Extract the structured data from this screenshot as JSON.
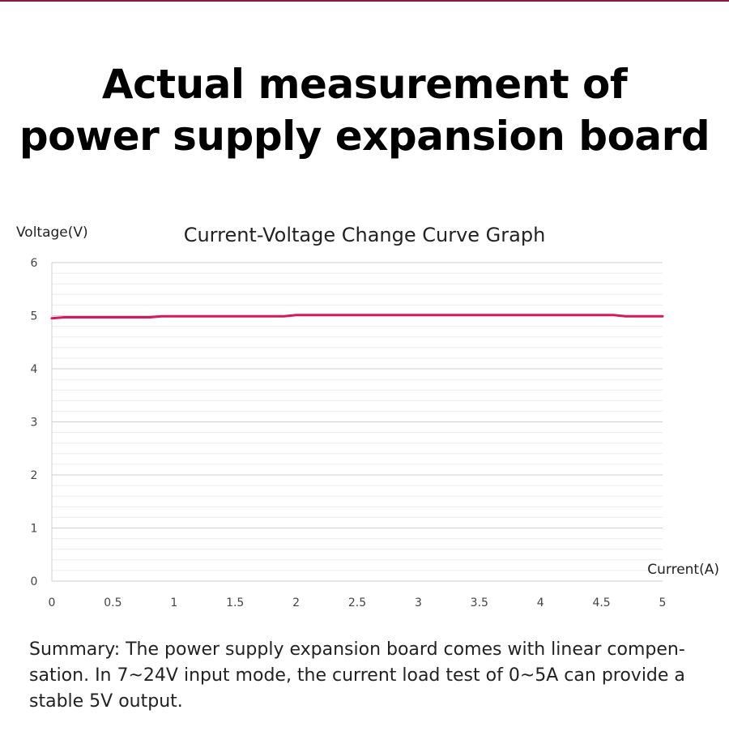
{
  "colors": {
    "accent": "#d6185f",
    "top_rule": "#8a1646",
    "grid_major": "#cfcfcf",
    "grid_minor": "#ececec",
    "axis_text": "#444444"
  },
  "heading": {
    "line1": "Actual measurement of",
    "line2": "power supply expansion board"
  },
  "summary": {
    "line1": "Summary: The power supply expansion board comes with linear compen-",
    "line2": "sation. In 7~24V input mode, the current load test of 0~5A can provide a",
    "line3": "stable 5V output."
  },
  "chart_data": {
    "type": "line",
    "title": "Current-Voltage Change Curve Graph",
    "xlabel": "Current(A)",
    "ylabel": "Voltage(V)",
    "xlim": [
      0,
      5
    ],
    "ylim": [
      0,
      6
    ],
    "xticks": [
      0,
      0.5,
      1,
      1.5,
      2,
      2.5,
      3,
      3.5,
      4,
      4.5,
      5
    ],
    "xtick_labels": [
      "0",
      "0.5",
      "1",
      "1.5",
      "2",
      "2.5",
      "3",
      "3.5",
      "4",
      "4.5",
      "5"
    ],
    "yticks": [
      0,
      1,
      2,
      3,
      4,
      5,
      6
    ],
    "ytick_labels": [
      "0",
      "1",
      "2",
      "3",
      "4",
      "5",
      "6"
    ],
    "grid": true,
    "minor_grid_step": 0.2,
    "legend": "none",
    "series": [
      {
        "x": [
          0,
          0.1,
          0.5,
          0.8,
          0.9,
          1.0,
          1.5,
          1.9,
          2.0,
          2.5,
          3.0,
          3.5,
          4.0,
          4.5,
          4.6,
          4.7,
          5.0
        ],
        "y": [
          4.95,
          4.97,
          4.97,
          4.97,
          4.99,
          4.99,
          4.99,
          4.99,
          5.01,
          5.01,
          5.01,
          5.01,
          5.01,
          5.01,
          5.01,
          4.99,
          4.99
        ]
      }
    ]
  }
}
